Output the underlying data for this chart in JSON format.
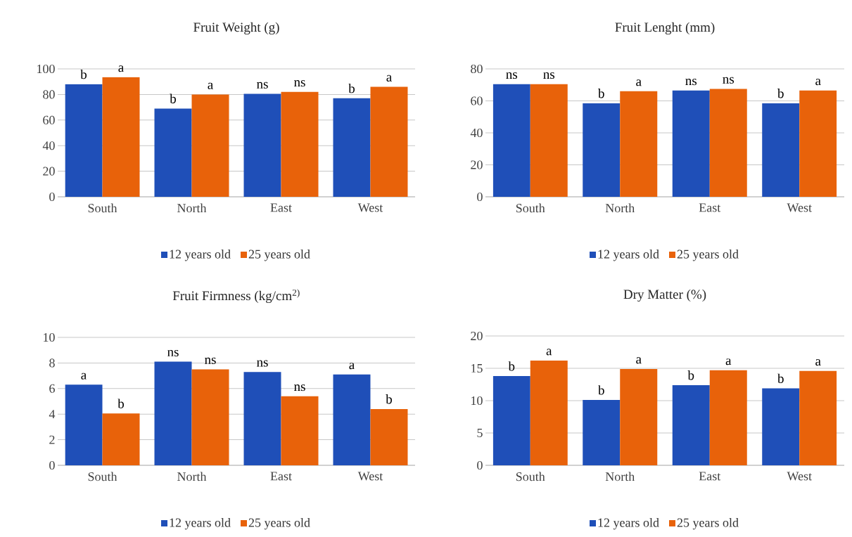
{
  "chart_data": [
    {
      "type": "bar",
      "title": "Fruit Weight (g)",
      "categories": [
        "South",
        "North",
        "East",
        "West"
      ],
      "series": [
        {
          "name": "12 years old",
          "color": "#1f4fb8",
          "values": [
            88,
            69,
            80.5,
            77
          ],
          "value_labels": [
            "b",
            "b",
            "ns",
            "b"
          ]
        },
        {
          "name": "25 years old",
          "color": "#e8620a",
          "values": [
            93.5,
            80,
            82,
            86
          ],
          "value_labels": [
            "a",
            "a",
            "ns",
            "a"
          ]
        }
      ],
      "ylim": [
        0,
        100
      ],
      "yticks": [
        0,
        20,
        40,
        60,
        80,
        100
      ],
      "grid": "y",
      "legend": "bottom"
    },
    {
      "type": "bar",
      "title": "Fruit Lenght (mm)",
      "categories": [
        "South",
        "North",
        "East",
        "West"
      ],
      "series": [
        {
          "name": "12 years old",
          "color": "#1f4fb8",
          "values": [
            70.5,
            58.5,
            66.5,
            58.5
          ],
          "value_labels": [
            "ns",
            "b",
            "ns",
            "b"
          ]
        },
        {
          "name": "25 years old",
          "color": "#e8620a",
          "values": [
            70.5,
            66,
            67.5,
            66.5
          ],
          "value_labels": [
            "ns",
            "a",
            "ns",
            "a"
          ]
        }
      ],
      "ylim": [
        0,
        80
      ],
      "yticks": [
        0,
        20,
        40,
        60,
        80
      ],
      "grid": "y",
      "legend": "bottom"
    },
    {
      "type": "bar",
      "title": "Fruit Firmness (kg/cm$^{2)}$",
      "categories": [
        "South",
        "North",
        "East",
        "West"
      ],
      "series": [
        {
          "name": "12 years old",
          "color": "#1f4fb8",
          "values": [
            6.3,
            8.1,
            7.3,
            7.1
          ],
          "value_labels": [
            "a",
            "ns",
            "ns",
            "a"
          ]
        },
        {
          "name": "25 years old",
          "color": "#e8620a",
          "values": [
            4.05,
            7.5,
            5.4,
            4.4
          ],
          "value_labels": [
            "b",
            "ns",
            "ns",
            "b"
          ]
        }
      ],
      "ylim": [
        0,
        10
      ],
      "yticks": [
        0,
        2,
        4,
        6,
        8,
        10
      ],
      "grid": "y",
      "legend": "bottom"
    },
    {
      "type": "bar",
      "title": "Dry Matter (%)",
      "categories": [
        "South",
        "North",
        "East",
        "West"
      ],
      "series": [
        {
          "name": "12 years old",
          "color": "#1f4fb8",
          "values": [
            13.8,
            10.1,
            12.4,
            11.9
          ],
          "value_labels": [
            "b",
            "b",
            "b",
            "b"
          ]
        },
        {
          "name": "25 years old",
          "color": "#e8620a",
          "values": [
            16.2,
            14.9,
            14.7,
            14.6
          ],
          "value_labels": [
            "a",
            "a",
            "a",
            "a"
          ]
        }
      ],
      "ylim": [
        0,
        20
      ],
      "yticks": [
        0,
        5,
        10,
        15,
        20
      ],
      "grid": "y",
      "legend": "bottom"
    }
  ]
}
